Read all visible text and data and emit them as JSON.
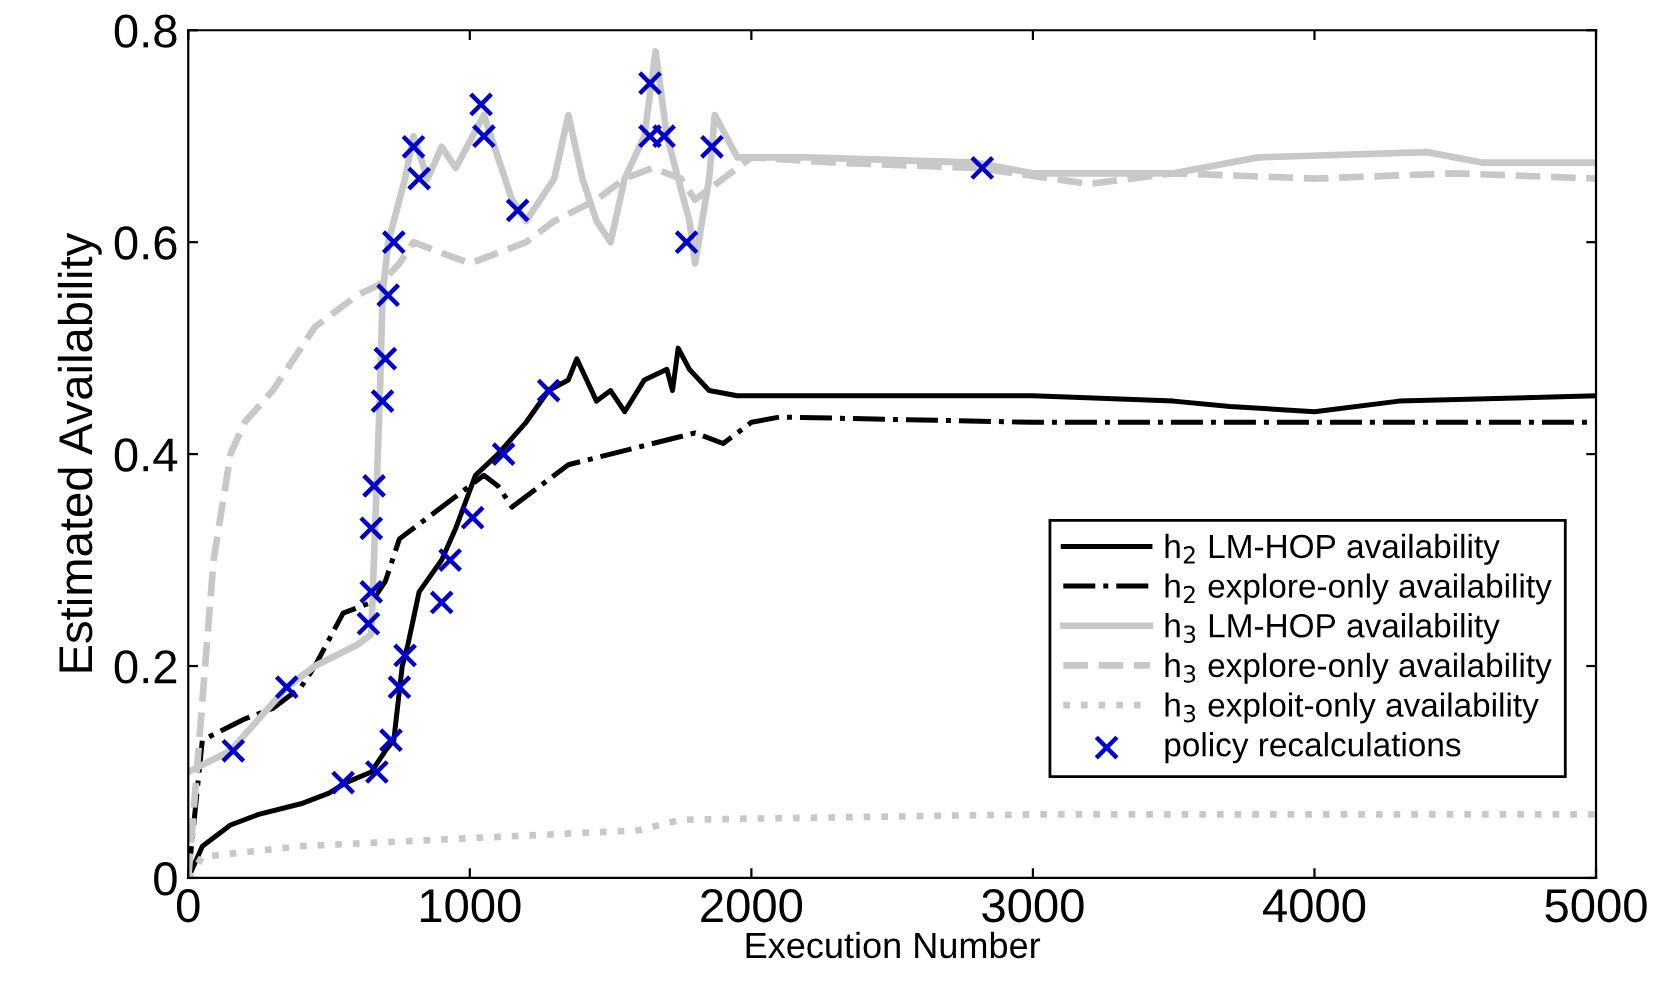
{
  "chart_data": {
    "type": "line",
    "xlabel": "Execution Number",
    "ylabel": "Estimated Availability",
    "xlim": [
      0,
      5000
    ],
    "xticks": [
      0,
      1000,
      2000,
      3000,
      4000,
      5000
    ],
    "ylim": [
      0,
      0.8
    ],
    "yticks": [
      0,
      0.2,
      0.4,
      0.6,
      0.8
    ],
    "grid": false,
    "legend": "bottom right",
    "series": [
      {
        "name": "h$_{2}$ LM-HOP availability",
        "color": "#000000",
        "line_style": "solid",
        "x": [
          0,
          50,
          150,
          250,
          400,
          500,
          560,
          650,
          700,
          730,
          760,
          780,
          820,
          900,
          950,
          1020,
          1100,
          1200,
          1280,
          1350,
          1380,
          1450,
          1500,
          1550,
          1620,
          1700,
          1720,
          1740,
          1780,
          1850,
          1950,
          2500,
          3000,
          3500,
          3700,
          4000,
          4300,
          5000
        ],
        "values": [
          0,
          0.03,
          0.05,
          0.06,
          0.07,
          0.08,
          0.09,
          0.1,
          0.12,
          0.13,
          0.2,
          0.22,
          0.27,
          0.3,
          0.33,
          0.38,
          0.4,
          0.43,
          0.46,
          0.47,
          0.49,
          0.45,
          0.46,
          0.44,
          0.47,
          0.48,
          0.46,
          0.5,
          0.48,
          0.46,
          0.455,
          0.455,
          0.455,
          0.45,
          0.445,
          0.44,
          0.45,
          0.455
        ]
      },
      {
        "name": "h$_{2}$ explore-only availability",
        "color": "#000000",
        "line_style": "dashdot",
        "x": [
          0,
          50,
          200,
          300,
          400,
          450,
          550,
          650,
          700,
          750,
          850,
          950,
          1050,
          1100,
          1150,
          1250,
          1350,
          1500,
          1650,
          1800,
          1900,
          2000,
          2100,
          3000,
          4000,
          5000
        ],
        "values": [
          0,
          0.13,
          0.15,
          0.16,
          0.18,
          0.2,
          0.25,
          0.26,
          0.28,
          0.32,
          0.34,
          0.36,
          0.38,
          0.37,
          0.35,
          0.37,
          0.39,
          0.4,
          0.41,
          0.42,
          0.41,
          0.43,
          0.435,
          0.43,
          0.43,
          0.43
        ]
      },
      {
        "name": "h$_{3}$ LM-HOP availability",
        "color": "#c8c8c8",
        "line_style": "solid",
        "x": [
          0,
          150,
          250,
          350,
          450,
          600,
          650,
          680,
          690,
          710,
          770,
          800,
          850,
          900,
          950,
          1050,
          1100,
          1150,
          1200,
          1300,
          1350,
          1400,
          1450,
          1500,
          1550,
          1620,
          1660,
          1700,
          1780,
          1800,
          1850,
          1870,
          1950,
          2200,
          2800,
          3000,
          3500,
          3800,
          4400,
          4600,
          5000
        ],
        "values": [
          0.1,
          0.12,
          0.15,
          0.18,
          0.2,
          0.22,
          0.23,
          0.45,
          0.55,
          0.6,
          0.66,
          0.7,
          0.66,
          0.69,
          0.67,
          0.72,
          0.68,
          0.64,
          0.62,
          0.66,
          0.72,
          0.66,
          0.62,
          0.6,
          0.66,
          0.7,
          0.78,
          0.7,
          0.62,
          0.58,
          0.66,
          0.72,
          0.68,
          0.68,
          0.675,
          0.665,
          0.665,
          0.68,
          0.685,
          0.675,
          0.675
        ]
      },
      {
        "name": "h$_{3}$ explore-only availability",
        "color": "#c8c8c8",
        "line_style": "dashed",
        "x": [
          0,
          30,
          60,
          90,
          150,
          200,
          300,
          350,
          400,
          450,
          500,
          600,
          680,
          750,
          800,
          900,
          1000,
          1100,
          1200,
          1300,
          1450,
          1550,
          1650,
          1750,
          1800,
          1900,
          2000,
          2300,
          2800,
          3200,
          3500,
          4000,
          4500,
          5000
        ],
        "values": [
          0,
          0.1,
          0.2,
          0.3,
          0.4,
          0.43,
          0.46,
          0.48,
          0.5,
          0.52,
          0.53,
          0.55,
          0.56,
          0.58,
          0.6,
          0.59,
          0.58,
          0.59,
          0.6,
          0.62,
          0.64,
          0.66,
          0.67,
          0.66,
          0.64,
          0.66,
          0.68,
          0.675,
          0.67,
          0.655,
          0.665,
          0.66,
          0.665,
          0.66
        ]
      },
      {
        "name": "h$_{3}$ exploit-only availability",
        "color": "#c8c8c8",
        "line_style": "dotted",
        "x": [
          0,
          50,
          400,
          1600,
          1750,
          3000,
          5000
        ],
        "values": [
          0,
          0.02,
          0.03,
          0.045,
          0.055,
          0.06,
          0.06
        ]
      },
      {
        "name": "policy recalculations",
        "type": "scatter",
        "marker": "cross",
        "color": "#0000cc",
        "x": [
          800,
          820,
          730,
          710,
          700,
          690,
          660,
          1040,
          1050,
          1170,
          1640,
          1640,
          1690,
          1770,
          1860,
          1280,
          1120,
          1010,
          2820,
          650,
          650,
          640,
          350,
          160,
          550,
          670,
          720,
          750,
          770,
          900,
          930
        ],
        "values": [
          0.69,
          0.66,
          0.6,
          0.55,
          0.49,
          0.45,
          0.37,
          0.73,
          0.7,
          0.63,
          0.75,
          0.7,
          0.7,
          0.6,
          0.69,
          0.46,
          0.4,
          0.34,
          0.67,
          0.33,
          0.27,
          0.24,
          0.18,
          0.12,
          0.09,
          0.1,
          0.13,
          0.18,
          0.21,
          0.26,
          0.3
        ]
      }
    ]
  }
}
